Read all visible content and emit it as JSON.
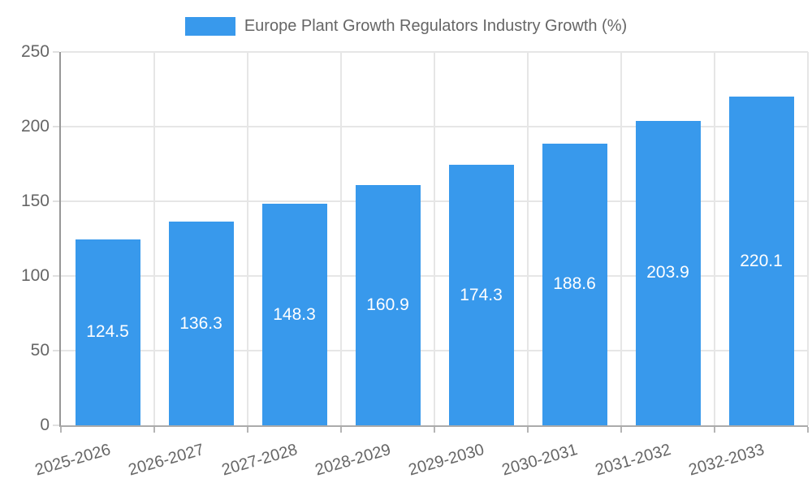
{
  "chart_data": {
    "type": "bar",
    "title": "Europe Plant Growth Regulators Industry Growth (%)",
    "legend": {
      "position": "top",
      "entries": [
        {
          "label": "Europe Plant Growth Regulators Industry Growth (%)",
          "color": "#3899ec"
        }
      ]
    },
    "categories": [
      "2025-2026",
      "2026-2027",
      "2027-2028",
      "2028-2029",
      "2029-2030",
      "2030-2031",
      "2031-2032",
      "2032-2033"
    ],
    "values": [
      124.5,
      136.3,
      148.3,
      160.9,
      174.3,
      188.6,
      203.9,
      220.1
    ],
    "value_labels": [
      "124.5",
      "136.3",
      "148.3",
      "160.9",
      "174.3",
      "188.6",
      "203.9",
      "220.1"
    ],
    "xlabel": "",
    "ylabel": "",
    "ylim": [
      0,
      250
    ],
    "yticks": [
      0,
      50,
      100,
      150,
      200,
      250
    ],
    "grid": true,
    "colors": {
      "bar": "#3899ec",
      "value_label": "#ffffff",
      "axis_text": "#666666",
      "gridline": "#e6e6e6",
      "axis_line": "#9e9e9e"
    }
  }
}
